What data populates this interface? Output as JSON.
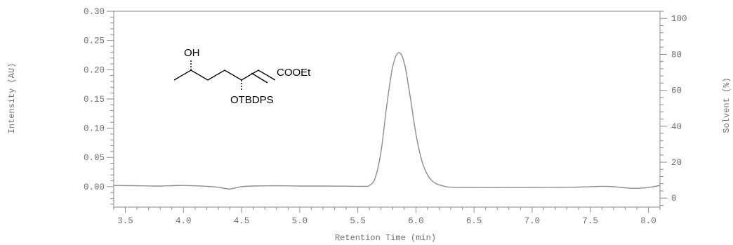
{
  "chart_data": {
    "type": "line",
    "xlabel": "Retention Time (min)",
    "ylabel": "Intensity (AU)",
    "y2label": "Solvent (%)",
    "xlim": [
      3.4,
      8.1
    ],
    "ylim": [
      -0.035,
      0.3
    ],
    "y2lim": [
      -5,
      104
    ],
    "xticks": [
      "3.5",
      "4.0",
      "4.5",
      "5.0",
      "5.5",
      "6.0",
      "6.5",
      "7.0",
      "7.5",
      "8.0"
    ],
    "yticks": [
      "0.00",
      "0.05",
      "0.10",
      "0.15",
      "0.20",
      "0.25",
      "0.30"
    ],
    "y2ticks": [
      "0",
      "20",
      "40",
      "60",
      "80",
      "100"
    ],
    "series": [
      {
        "x": [
          3.4,
          3.6,
          3.8,
          4.0,
          4.2,
          4.3,
          4.35,
          4.4,
          4.45,
          4.5,
          4.6,
          4.8,
          5.0,
          5.2,
          5.4,
          5.55,
          5.6,
          5.65,
          5.7,
          5.75,
          5.8,
          5.85,
          5.9,
          5.95,
          6.0,
          6.05,
          6.1,
          6.15,
          6.2,
          6.3,
          6.5,
          6.8,
          7.0,
          7.3,
          7.4,
          7.5,
          7.6,
          7.7,
          7.8,
          7.9,
          8.0,
          8.1
        ],
        "y": [
          0.002,
          0.0015,
          0.001,
          0.002,
          0.0005,
          -0.001,
          -0.003,
          -0.004,
          -0.002,
          0.0,
          0.001,
          0.0015,
          0.001,
          0.001,
          0.0008,
          0.0005,
          0.002,
          0.015,
          0.06,
          0.14,
          0.205,
          0.229,
          0.212,
          0.155,
          0.09,
          0.045,
          0.02,
          0.008,
          0.003,
          -0.001,
          -0.0015,
          -0.0015,
          -0.0015,
          -0.001,
          -0.0008,
          0.0,
          0.0005,
          0.0,
          -0.002,
          -0.003,
          -0.0015,
          0.002
        ]
      }
    ]
  },
  "structure": {
    "oh": "OH",
    "ester": "COOEt",
    "silyl_ether": "OTBDPS"
  }
}
